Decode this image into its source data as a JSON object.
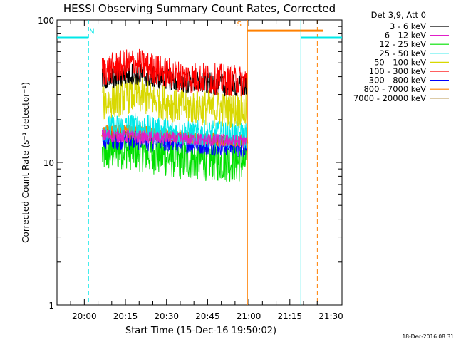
{
  "chart_data": {
    "type": "line",
    "title": "HESSI Observing Summary Count Rates, Corrected",
    "xlabel": "Start Time (15-Dec-16 19:50:02)",
    "ylabel": "Corrected Count Rate (s⁻¹ detector⁻¹)",
    "x_unit": "minutes after 19:50:02",
    "xlim": [
      0,
      104
    ],
    "ylim": [
      1,
      100
    ],
    "yscale": "log",
    "x_ticks": [
      "20:00",
      "20:15",
      "20:30",
      "20:45",
      "21:00",
      "21:15",
      "21:30"
    ],
    "y_ticks": [
      "1",
      "10",
      "100"
    ],
    "legend_title": "Det 3,9, Att 0",
    "legend_placement": "right",
    "timestamp": "18-Dec-2016 08:31",
    "data_window": [
      16.5,
      69.5
    ],
    "series": [
      {
        "name": "3 - 6 keV",
        "color": "#000000",
        "trend": [
          [
            16.5,
            38
          ],
          [
            28,
            42
          ],
          [
            45,
            37
          ],
          [
            69.5,
            34
          ]
        ],
        "spread": 0.05
      },
      {
        "name": "6 - 12 keV",
        "color": "#e01ec8",
        "trend": [
          [
            16.5,
            15.5
          ],
          [
            30,
            15
          ],
          [
            69.5,
            14
          ]
        ],
        "spread": 0.03
      },
      {
        "name": "12 - 25 keV",
        "color": "#00e000",
        "trend": [
          [
            16.5,
            11.5
          ],
          [
            25,
            12.5
          ],
          [
            45,
            10.5
          ],
          [
            69.5,
            10
          ]
        ],
        "spread": 0.09
      },
      {
        "name": "25 - 50 keV",
        "color": "#00e8e8",
        "trend": [
          [
            16.5,
            17
          ],
          [
            28,
            18
          ],
          [
            45,
            16
          ],
          [
            69.5,
            15.5
          ]
        ],
        "spread": 0.06
      },
      {
        "name": "50 - 100 keV",
        "color": "#d8d800",
        "trend": [
          [
            16.5,
            26
          ],
          [
            28,
            30
          ],
          [
            45,
            25
          ],
          [
            69.5,
            23
          ]
        ],
        "spread": 0.08
      },
      {
        "name": "100 - 300 keV",
        "color": "#ff0000",
        "trend": [
          [
            16.5,
            44
          ],
          [
            28,
            50
          ],
          [
            45,
            40
          ],
          [
            69.5,
            37
          ]
        ],
        "spread": 0.07
      },
      {
        "name": "300 - 800 keV",
        "color": "#0000ff",
        "trend": [
          [
            16.5,
            15
          ],
          [
            30,
            14.5
          ],
          [
            69.5,
            13
          ]
        ],
        "spread": 0.05
      },
      {
        "name": "800 - 7000 keV",
        "color": "#ff8000",
        "trend": [
          [
            16.5,
            16.5
          ],
          [
            30,
            17
          ],
          [
            45,
            15
          ],
          [
            69.5,
            14
          ]
        ],
        "spread": 0.025
      },
      {
        "name": "7000 - 20000 keV",
        "color": "#a07010",
        "trend": [
          [
            16.5,
            16
          ],
          [
            69.5,
            14
          ]
        ],
        "spread": 0.02
      }
    ],
    "markers": [
      {
        "type": "bar",
        "color": "#00e8e8",
        "x": [
          0,
          11.5
        ],
        "y": 75
      },
      {
        "type": "vline",
        "color": "#00e8e8",
        "x": 11.5,
        "style": "dashed"
      },
      {
        "type": "label",
        "color": "#00e8e8",
        "text": "N",
        "x": 12.7,
        "y": 80
      },
      {
        "type": "vline",
        "color": "#ff8000",
        "x": 69.5,
        "style": "solid"
      },
      {
        "type": "bar",
        "color": "#ff8000",
        "x": [
          69.5,
          97
        ],
        "y": 84
      },
      {
        "type": "label",
        "color": "#ff8000",
        "text": "S",
        "x": 66.5,
        "y": 90
      },
      {
        "type": "vline",
        "color": "#00e8e8",
        "x": 89,
        "style": "solid"
      },
      {
        "type": "vline",
        "color": "#ff8000",
        "x": 95,
        "style": "dashed"
      },
      {
        "type": "bar",
        "color": "#00e8e8",
        "x": [
          89,
          112
        ],
        "y": 75
      },
      {
        "type": "vline",
        "color": "#00e8e8",
        "x": 112,
        "style": "dashed"
      }
    ]
  }
}
